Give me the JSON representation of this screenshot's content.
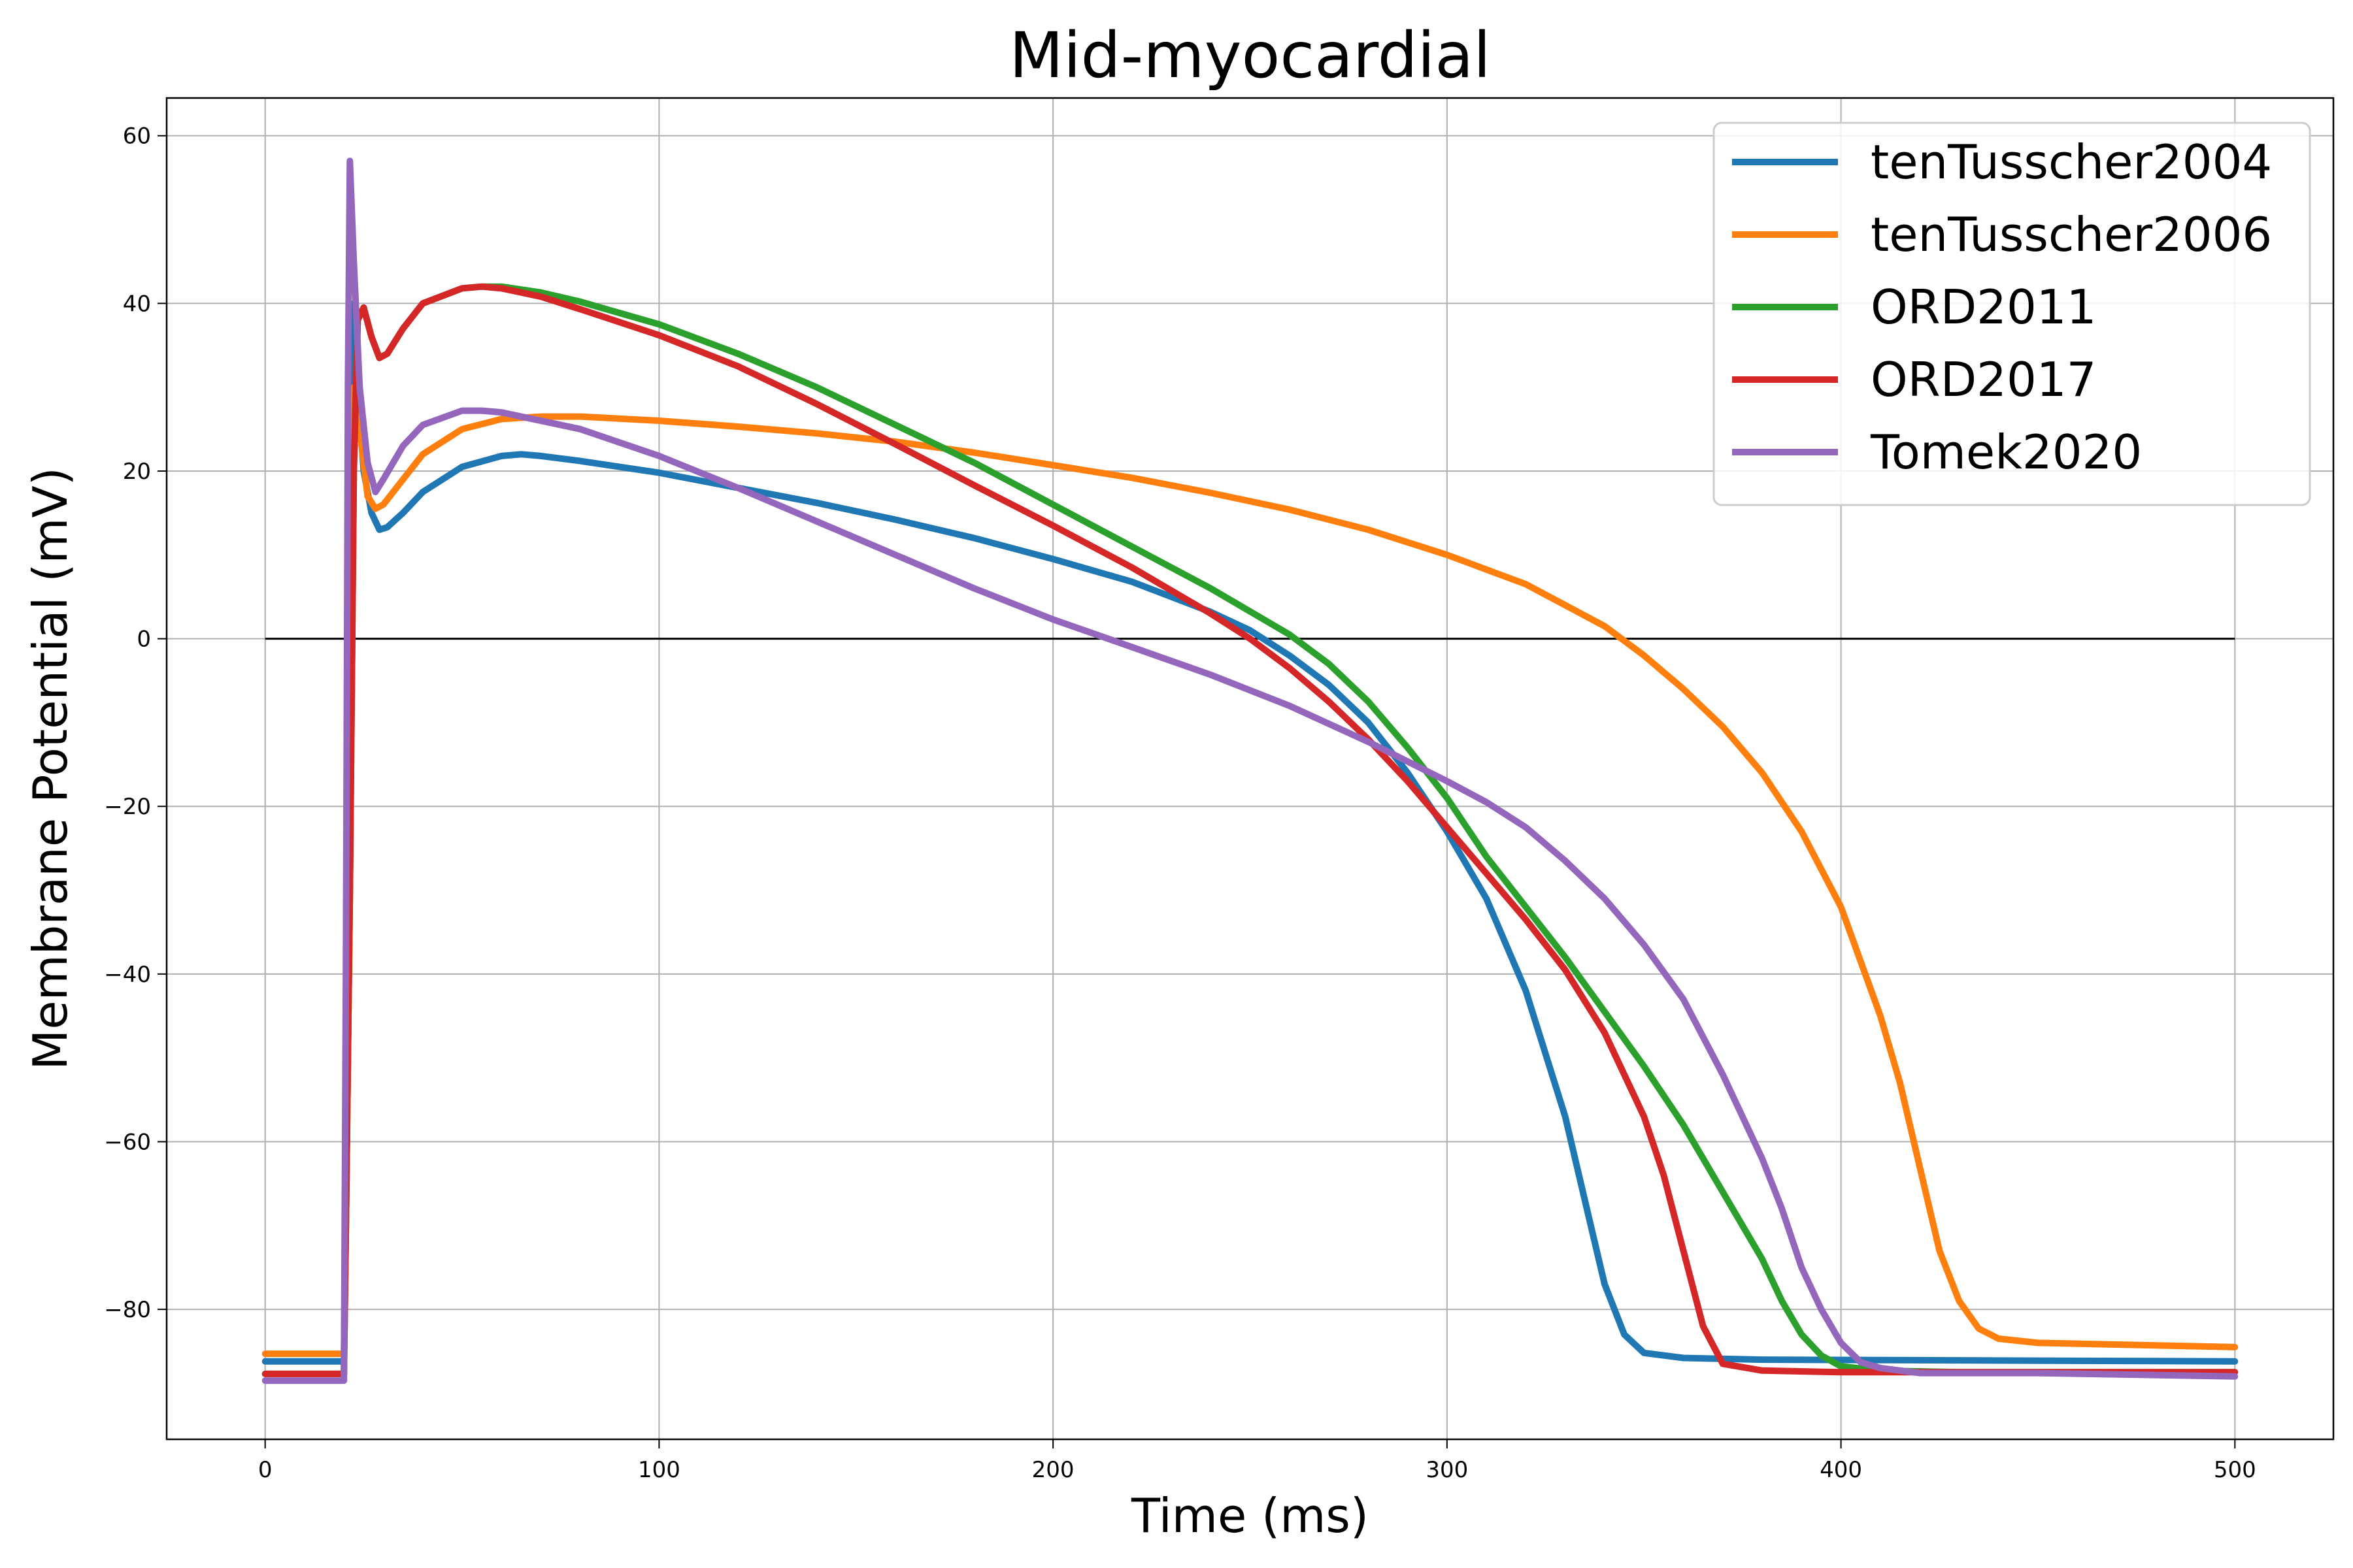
{
  "chart_data": {
    "type": "line",
    "title": "Mid-myocardial",
    "xlabel": "Time (ms)",
    "ylabel": "Membrane Potential (mV)",
    "xlim": [
      -25,
      525
    ],
    "ylim": [
      -95.5,
      64.5
    ],
    "xticks": [
      0,
      100,
      200,
      300,
      400,
      500
    ],
    "yticks": [
      -80,
      -60,
      -40,
      -20,
      0,
      20,
      40,
      60
    ],
    "xtick_labels": [
      "0",
      "100",
      "200",
      "300",
      "400",
      "500"
    ],
    "ytick_labels": [
      "−80",
      "−60",
      "−40",
      "−20",
      "0",
      "20",
      "40",
      "60"
    ],
    "grid": true,
    "legend_position": "top-right",
    "reference_line": {
      "y": 0,
      "x_range": [
        0,
        500
      ],
      "color": "#000000"
    },
    "series": [
      {
        "name": "tenTusscher2004",
        "color": "#1f77b4",
        "points": [
          [
            0,
            -86.2
          ],
          [
            20,
            -86.2
          ],
          [
            20.5,
            -60
          ],
          [
            21.5,
            -20
          ],
          [
            22.5,
            40
          ],
          [
            23.5,
            30
          ],
          [
            25,
            20
          ],
          [
            27,
            15
          ],
          [
            29,
            13
          ],
          [
            31,
            13.3
          ],
          [
            35,
            15
          ],
          [
            40,
            17.5
          ],
          [
            50,
            20.5
          ],
          [
            60,
            21.8
          ],
          [
            65,
            22
          ],
          [
            70,
            21.8
          ],
          [
            80,
            21.2
          ],
          [
            100,
            19.8
          ],
          [
            120,
            18
          ],
          [
            140,
            16.2
          ],
          [
            160,
            14.2
          ],
          [
            180,
            12
          ],
          [
            200,
            9.5
          ],
          [
            220,
            6.8
          ],
          [
            240,
            3.2
          ],
          [
            250,
            1
          ],
          [
            260,
            -2
          ],
          [
            270,
            -5.5
          ],
          [
            280,
            -10
          ],
          [
            290,
            -16
          ],
          [
            300,
            -23
          ],
          [
            310,
            -31
          ],
          [
            320,
            -42
          ],
          [
            330,
            -57
          ],
          [
            335,
            -67
          ],
          [
            340,
            -77
          ],
          [
            345,
            -83
          ],
          [
            350,
            -85.2
          ],
          [
            360,
            -85.8
          ],
          [
            380,
            -86
          ],
          [
            500,
            -86.2
          ]
        ]
      },
      {
        "name": "tenTusscher2006",
        "color": "#ff7f0e",
        "points": [
          [
            0,
            -85.3
          ],
          [
            20,
            -85.3
          ],
          [
            20.5,
            -70
          ],
          [
            21.5,
            -30
          ],
          [
            22.5,
            30
          ],
          [
            24,
            25
          ],
          [
            26,
            17
          ],
          [
            28,
            15.5
          ],
          [
            30,
            16
          ],
          [
            35,
            19
          ],
          [
            40,
            22
          ],
          [
            50,
            25
          ],
          [
            60,
            26.2
          ],
          [
            70,
            26.5
          ],
          [
            80,
            26.5
          ],
          [
            100,
            26
          ],
          [
            120,
            25.3
          ],
          [
            140,
            24.5
          ],
          [
            160,
            23.5
          ],
          [
            180,
            22.2
          ],
          [
            200,
            20.7
          ],
          [
            220,
            19.2
          ],
          [
            240,
            17.4
          ],
          [
            260,
            15.4
          ],
          [
            280,
            13
          ],
          [
            300,
            10
          ],
          [
            320,
            6.5
          ],
          [
            340,
            1.5
          ],
          [
            350,
            -2
          ],
          [
            360,
            -6
          ],
          [
            370,
            -10.5
          ],
          [
            380,
            -16
          ],
          [
            390,
            -23
          ],
          [
            400,
            -32
          ],
          [
            410,
            -45
          ],
          [
            415,
            -53
          ],
          [
            420,
            -63
          ],
          [
            425,
            -73
          ],
          [
            430,
            -79
          ],
          [
            435,
            -82.3
          ],
          [
            440,
            -83.5
          ],
          [
            450,
            -84
          ],
          [
            470,
            -84.2
          ],
          [
            500,
            -84.5
          ]
        ]
      },
      {
        "name": "ORD2011",
        "color": "#2ca02c",
        "points": [
          [
            0,
            -87.7
          ],
          [
            20,
            -87.7
          ],
          [
            20.5,
            -70
          ],
          [
            21.5,
            -30
          ],
          [
            22.5,
            20
          ],
          [
            23.5,
            38
          ],
          [
            25,
            39.5
          ],
          [
            27,
            36
          ],
          [
            29,
            33.5
          ],
          [
            31,
            34
          ],
          [
            35,
            37
          ],
          [
            40,
            40
          ],
          [
            50,
            41.8
          ],
          [
            55,
            42
          ],
          [
            60,
            42
          ],
          [
            70,
            41.3
          ],
          [
            80,
            40.2
          ],
          [
            100,
            37.5
          ],
          [
            120,
            34
          ],
          [
            140,
            30
          ],
          [
            160,
            25.5
          ],
          [
            180,
            21
          ],
          [
            200,
            16
          ],
          [
            220,
            11
          ],
          [
            240,
            6
          ],
          [
            260,
            0.5
          ],
          [
            270,
            -3
          ],
          [
            280,
            -7.5
          ],
          [
            290,
            -13
          ],
          [
            300,
            -19
          ],
          [
            310,
            -26
          ],
          [
            320,
            -32
          ],
          [
            330,
            -38
          ],
          [
            340,
            -44.5
          ],
          [
            350,
            -51
          ],
          [
            360,
            -58
          ],
          [
            370,
            -66
          ],
          [
            380,
            -74
          ],
          [
            385,
            -79
          ],
          [
            390,
            -83
          ],
          [
            395,
            -85.5
          ],
          [
            400,
            -86.8
          ],
          [
            410,
            -87.3
          ],
          [
            430,
            -87.5
          ],
          [
            500,
            -87.5
          ]
        ]
      },
      {
        "name": "ORD2017",
        "color": "#d62728",
        "points": [
          [
            0,
            -87.7
          ],
          [
            20,
            -87.7
          ],
          [
            20.5,
            -70
          ],
          [
            21.5,
            -30
          ],
          [
            22.5,
            20
          ],
          [
            23.5,
            38
          ],
          [
            25,
            39.5
          ],
          [
            27,
            36
          ],
          [
            29,
            33.5
          ],
          [
            31,
            34
          ],
          [
            35,
            37
          ],
          [
            40,
            40
          ],
          [
            50,
            41.8
          ],
          [
            55,
            42
          ],
          [
            60,
            41.8
          ],
          [
            70,
            40.8
          ],
          [
            80,
            39.3
          ],
          [
            100,
            36.2
          ],
          [
            120,
            32.5
          ],
          [
            140,
            28
          ],
          [
            160,
            23.2
          ],
          [
            180,
            18.3
          ],
          [
            200,
            13.5
          ],
          [
            220,
            8.5
          ],
          [
            240,
            3
          ],
          [
            250,
            0
          ],
          [
            260,
            -3.5
          ],
          [
            270,
            -7.5
          ],
          [
            280,
            -12
          ],
          [
            290,
            -17
          ],
          [
            300,
            -22.5
          ],
          [
            310,
            -28
          ],
          [
            320,
            -33.5
          ],
          [
            330,
            -39.5
          ],
          [
            340,
            -47
          ],
          [
            350,
            -57
          ],
          [
            355,
            -64
          ],
          [
            360,
            -73
          ],
          [
            365,
            -82
          ],
          [
            370,
            -86.5
          ],
          [
            380,
            -87.3
          ],
          [
            400,
            -87.5
          ],
          [
            500,
            -87.5
          ]
        ]
      },
      {
        "name": "Tomek2020",
        "color": "#9467bd",
        "points": [
          [
            0,
            -88.5
          ],
          [
            20,
            -88.5
          ],
          [
            20.5,
            -40
          ],
          [
            21,
            30
          ],
          [
            21.5,
            57
          ],
          [
            22.5,
            45
          ],
          [
            24,
            30
          ],
          [
            26,
            21
          ],
          [
            28,
            17.5
          ],
          [
            30,
            19
          ],
          [
            35,
            23
          ],
          [
            40,
            25.5
          ],
          [
            50,
            27.2
          ],
          [
            55,
            27.2
          ],
          [
            60,
            27
          ],
          [
            80,
            25
          ],
          [
            100,
            21.8
          ],
          [
            120,
            18
          ],
          [
            140,
            14
          ],
          [
            160,
            10
          ],
          [
            180,
            6
          ],
          [
            200,
            2.3
          ],
          [
            220,
            -1
          ],
          [
            240,
            -4.3
          ],
          [
            260,
            -8
          ],
          [
            280,
            -12.3
          ],
          [
            300,
            -17
          ],
          [
            310,
            -19.5
          ],
          [
            320,
            -22.5
          ],
          [
            330,
            -26.5
          ],
          [
            340,
            -31
          ],
          [
            350,
            -36.5
          ],
          [
            360,
            -43
          ],
          [
            370,
            -52
          ],
          [
            380,
            -62
          ],
          [
            385,
            -68
          ],
          [
            390,
            -75
          ],
          [
            395,
            -80
          ],
          [
            400,
            -84
          ],
          [
            405,
            -86.3
          ],
          [
            410,
            -87
          ],
          [
            420,
            -87.6
          ],
          [
            450,
            -87.6
          ],
          [
            500,
            -88
          ]
        ]
      }
    ]
  }
}
